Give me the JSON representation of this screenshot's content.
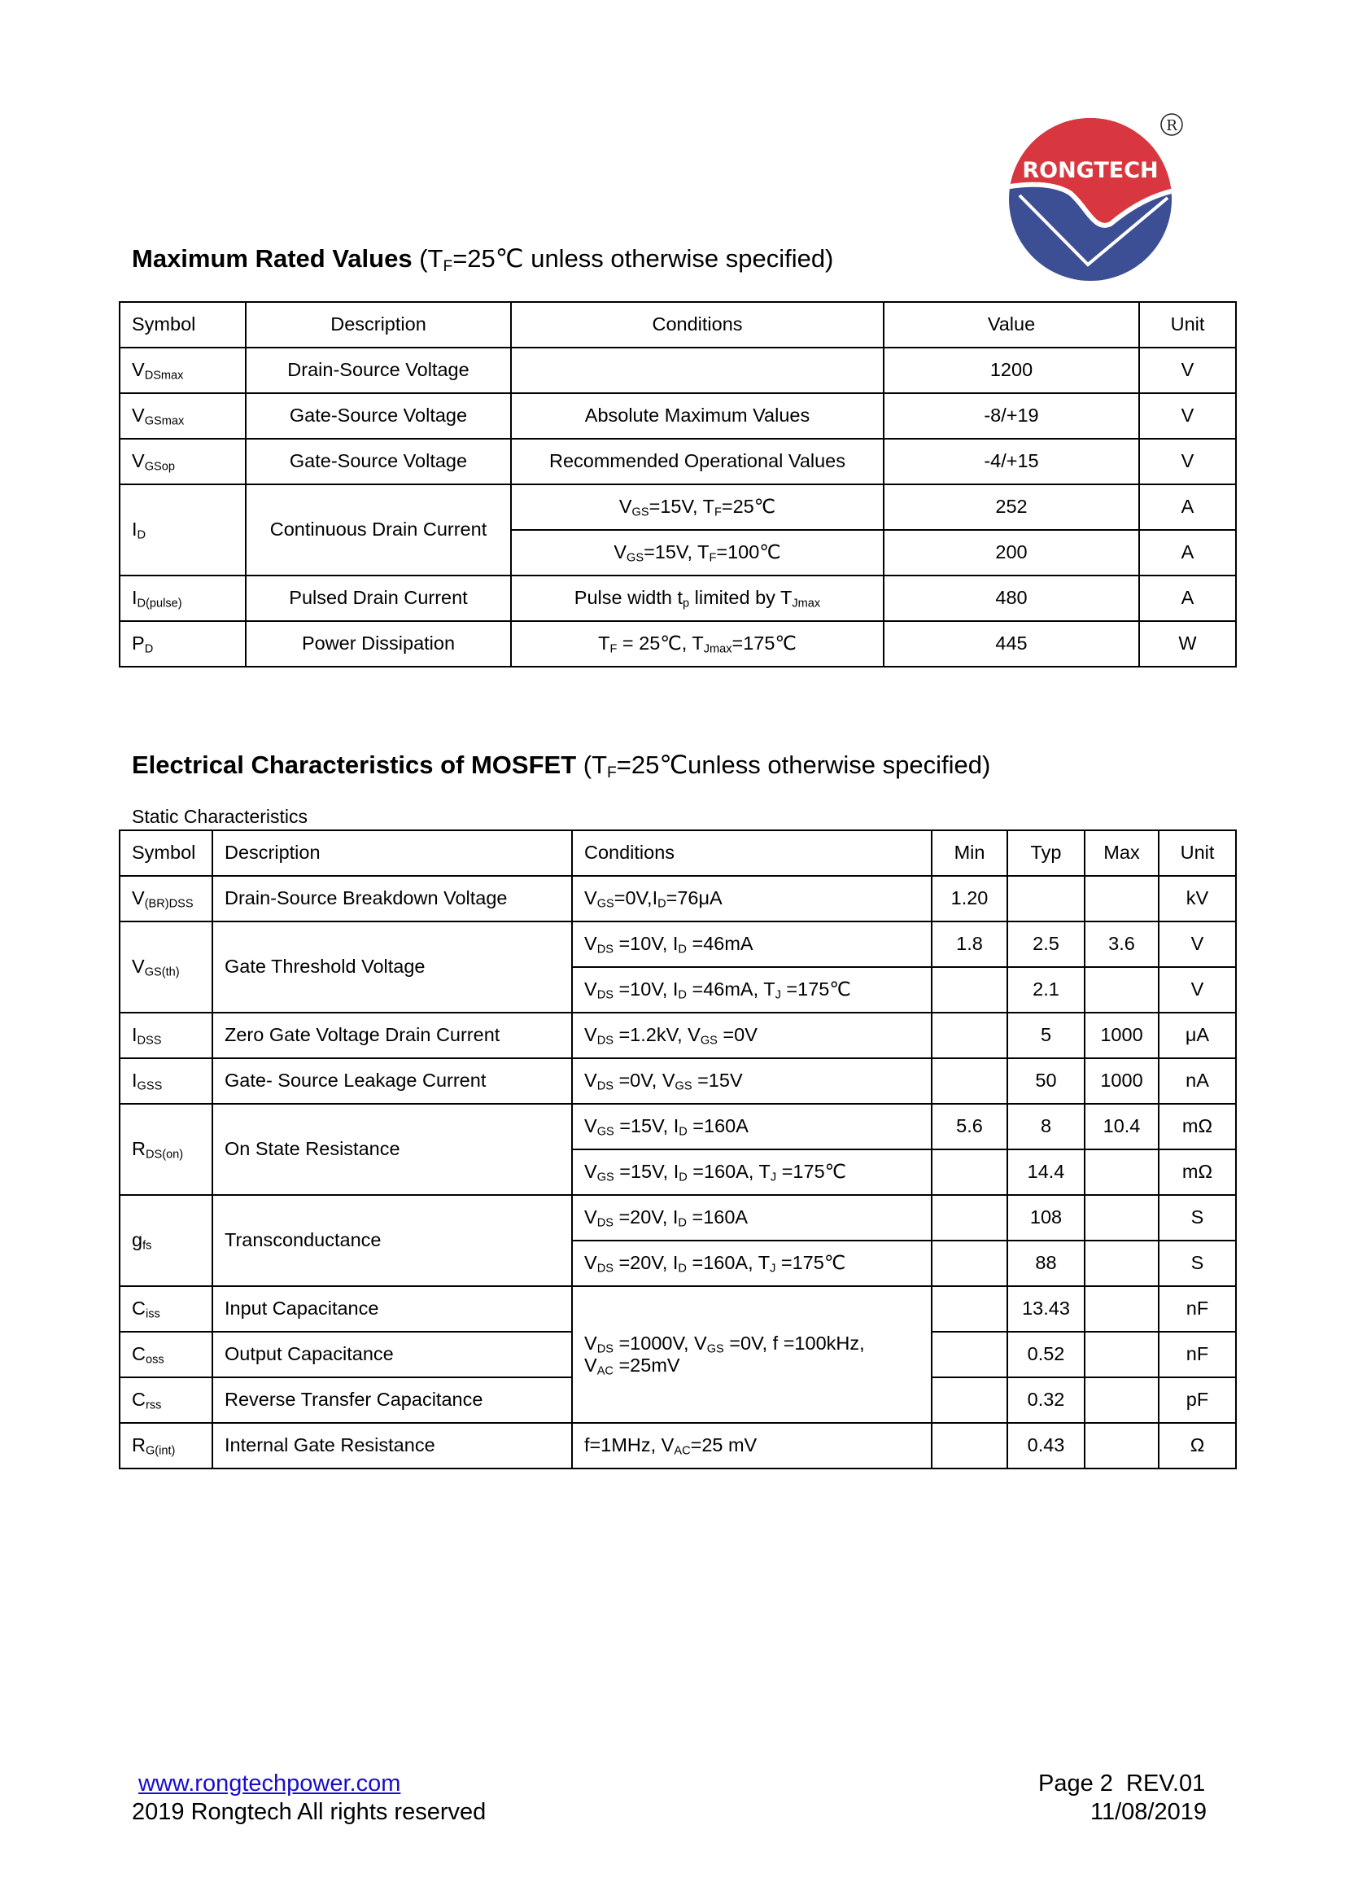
{
  "logo": {
    "text": "RONGTECH",
    "registered": "®",
    "colors": {
      "red": "#d9373f",
      "blue": "#3d4f94"
    }
  },
  "section1": {
    "title_bold": "Maximum Rated Values",
    "title_rest": " (T_{F}=25℃ unless otherwise specified)",
    "columns": [
      "Symbol",
      "Description",
      "Conditions",
      "Value",
      "Unit"
    ],
    "rows": [
      [
        {
          "t": "V_{DSmax}"
        },
        {
          "t": "Drain-Source Voltage"
        },
        {
          "t": ""
        },
        {
          "t": "1200"
        },
        {
          "t": "V"
        }
      ],
      [
        {
          "t": "V_{GSmax}"
        },
        {
          "t": "Gate-Source Voltage"
        },
        {
          "t": "Absolute Maximum Values"
        },
        {
          "t": "-8/+19"
        },
        {
          "t": "V"
        }
      ],
      [
        {
          "t": "V_{GSop}"
        },
        {
          "t": "Gate-Source Voltage"
        },
        {
          "t": "Recommended Operational Values"
        },
        {
          "t": "-4/+15"
        },
        {
          "t": "V"
        }
      ],
      [
        {
          "t": "I_{D}",
          "rs": 2
        },
        {
          "t": "Continuous Drain Current",
          "rs": 2
        },
        {
          "t": "V_{GS}=15V, T_{F}=25℃"
        },
        {
          "t": "252"
        },
        {
          "t": "A"
        }
      ],
      [
        {
          "t": "V_{GS}=15V, T_{F}=100℃"
        },
        {
          "t": "200"
        },
        {
          "t": "A"
        }
      ],
      [
        {
          "t": "I_{D(pulse)}"
        },
        {
          "t": "Pulsed Drain Current"
        },
        {
          "t": "Pulse width t_{p} limited by T_{Jmax}"
        },
        {
          "t": "480"
        },
        {
          "t": "A"
        }
      ],
      [
        {
          "t": "P_{D}"
        },
        {
          "t": "Power Dissipation"
        },
        {
          "t": "T_{F} = 25℃, T_{Jmax}=175℃"
        },
        {
          "t": "445"
        },
        {
          "t": "W"
        }
      ]
    ]
  },
  "section2": {
    "title_bold": "Electrical Characteristics of MOSFET",
    "title_rest": " (T_{F}=25℃unless otherwise specified)",
    "subtitle": "Static Characteristics",
    "columns": [
      "Symbol",
      "Description",
      "Conditions",
      "Min",
      "Typ",
      "Max",
      "Unit"
    ],
    "rows": [
      [
        {
          "t": "V_{(BR)DSS}"
        },
        {
          "t": "Drain-Source Breakdown Voltage"
        },
        {
          "t": "V_{GS}=0V,I_{D}=76μA"
        },
        {
          "t": "1.20"
        },
        {
          "t": ""
        },
        {
          "t": ""
        },
        {
          "t": "kV"
        }
      ],
      [
        {
          "t": "V_{GS(th)}",
          "rs": 2
        },
        {
          "t": "Gate Threshold Voltage",
          "rs": 2
        },
        {
          "t": "V_{DS} =10V, I_{D} =46mA"
        },
        {
          "t": "1.8"
        },
        {
          "t": "2.5"
        },
        {
          "t": "3.6"
        },
        {
          "t": "V"
        }
      ],
      [
        {
          "t": "V_{DS} =10V, I_{D} =46mA, T_{J} =175℃"
        },
        {
          "t": ""
        },
        {
          "t": "2.1"
        },
        {
          "t": ""
        },
        {
          "t": "V"
        }
      ],
      [
        {
          "t": "I_{DSS}"
        },
        {
          "t": "Zero Gate Voltage Drain Current"
        },
        {
          "t": "V_{DS} =1.2kV, V_{GS} =0V"
        },
        {
          "t": ""
        },
        {
          "t": "5"
        },
        {
          "t": "1000"
        },
        {
          "t": "μA"
        }
      ],
      [
        {
          "t": "I_{GSS}"
        },
        {
          "t": "Gate- Source Leakage Current"
        },
        {
          "t": "V_{DS} =0V, V_{GS} =15V"
        },
        {
          "t": ""
        },
        {
          "t": "50"
        },
        {
          "t": "1000"
        },
        {
          "t": "nA"
        }
      ],
      [
        {
          "t": "R_{DS(on)}",
          "rs": 2
        },
        {
          "t": "On State Resistance",
          "rs": 2
        },
        {
          "t": "V_{GS} =15V, I_{D} =160A"
        },
        {
          "t": "5.6"
        },
        {
          "t": "8"
        },
        {
          "t": "10.4"
        },
        {
          "t": "mΩ"
        }
      ],
      [
        {
          "t": "V_{GS} =15V, I_{D} =160A, T_{J} =175℃"
        },
        {
          "t": ""
        },
        {
          "t": "14.4"
        },
        {
          "t": ""
        },
        {
          "t": "mΩ"
        }
      ],
      [
        {
          "t": "g_{fs}",
          "rs": 2
        },
        {
          "t": "Transconductance",
          "rs": 2
        },
        {
          "t": "V_{DS} =20V, I_{D} =160A"
        },
        {
          "t": ""
        },
        {
          "t": "108"
        },
        {
          "t": ""
        },
        {
          "t": "S"
        }
      ],
      [
        {
          "t": "V_{DS} =20V, I_{D} =160A, T_{J} =175℃"
        },
        {
          "t": ""
        },
        {
          "t": "88"
        },
        {
          "t": ""
        },
        {
          "t": "S"
        }
      ],
      [
        {
          "t": "C_{iss}"
        },
        {
          "t": "Input Capacitance"
        },
        {
          "t": "V_{DS} =1000V, V_{GS} =0V, f =100kHz,\nV_{AC} =25mV",
          "rs": 3
        },
        {
          "t": ""
        },
        {
          "t": "13.43"
        },
        {
          "t": ""
        },
        {
          "t": "nF"
        }
      ],
      [
        {
          "t": "C_{oss}"
        },
        {
          "t": "Output Capacitance"
        },
        {
          "t": ""
        },
        {
          "t": "0.52"
        },
        {
          "t": ""
        },
        {
          "t": "nF"
        }
      ],
      [
        {
          "t": "C_{rss}"
        },
        {
          "t": "Reverse Transfer Capacitance"
        },
        {
          "t": ""
        },
        {
          "t": "0.32"
        },
        {
          "t": ""
        },
        {
          "t": "pF"
        }
      ],
      [
        {
          "t": "R_{G(int)}"
        },
        {
          "t": "Internal Gate Resistance"
        },
        {
          "t": "f=1MHz, V_{AC}=25 mV"
        },
        {
          "t": ""
        },
        {
          "t": "0.43"
        },
        {
          "t": ""
        },
        {
          "t": "Ω"
        }
      ]
    ]
  },
  "footer": {
    "link": "www.rongtechpower.com",
    "copyright": "2019 Rongtech All rights reserved",
    "page": "Page 2  REV.01",
    "date": "11/08/2019"
  }
}
